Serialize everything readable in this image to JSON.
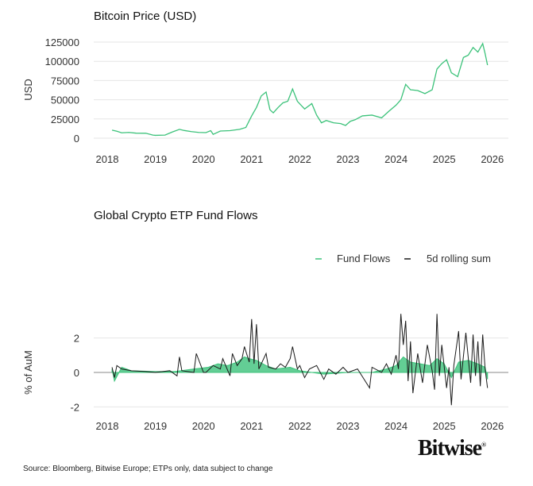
{
  "colors": {
    "price": "#3cc27a",
    "flows": "#3cc27a",
    "rolling": "#1a1a1a",
    "grid": "#e6e6e6"
  },
  "brand": "Bitwise",
  "source": "Source: Bloomberg, Bitwise Europe; ETPs only, data subject to change",
  "chart_data": [
    {
      "type": "line",
      "title": "Bitcoin Price (USD)",
      "ylabel": "USD",
      "xlabel": "",
      "xlim": [
        2018,
        2026
      ],
      "ylim": [
        0,
        125000
      ],
      "xticks": [
        "2018",
        "2019",
        "2020",
        "2021",
        "2022",
        "2023",
        "2024",
        "2025",
        "2026"
      ],
      "yticks": [
        "0",
        "25000",
        "50000",
        "75000",
        "100000",
        "125000"
      ],
      "grid": "horizontal",
      "series": [
        {
          "x": [
            2018.1,
            2018.2,
            2018.3,
            2018.45,
            2018.6,
            2018.8,
            2018.95,
            2019.0,
            2019.2,
            2019.35,
            2019.5,
            2019.6,
            2019.75,
            2019.9,
            2020.05,
            2020.15,
            2020.2,
            2020.35,
            2020.55,
            2020.75,
            2020.88,
            2021.0,
            2021.1,
            2021.2,
            2021.3,
            2021.38,
            2021.45,
            2021.55,
            2021.65,
            2021.75,
            2021.85,
            2021.95,
            2022.1,
            2022.25,
            2022.35,
            2022.45,
            2022.55,
            2022.7,
            2022.85,
            2022.95,
            2023.05,
            2023.15,
            2023.3,
            2023.5,
            2023.7,
            2023.85,
            2024.0,
            2024.1,
            2024.2,
            2024.3,
            2024.45,
            2024.6,
            2024.75,
            2024.85,
            2024.95,
            2025.05,
            2025.15,
            2025.28,
            2025.4,
            2025.5,
            2025.6,
            2025.7,
            2025.8,
            2025.85,
            2025.9
          ],
          "values": [
            10500,
            9000,
            7000,
            7500,
            6500,
            6400,
            4000,
            3700,
            4000,
            8000,
            11500,
            10000,
            8500,
            7500,
            7200,
            9800,
            5000,
            9300,
            9800,
            11500,
            14000,
            29000,
            40000,
            55000,
            60000,
            37000,
            33000,
            40000,
            46000,
            48000,
            64000,
            48000,
            38000,
            45000,
            30000,
            20000,
            23000,
            20000,
            19000,
            16500,
            22000,
            24000,
            29000,
            30000,
            26500,
            35000,
            43000,
            50000,
            70000,
            63000,
            62000,
            58000,
            63000,
            90000,
            97000,
            102000,
            85000,
            80000,
            105000,
            108000,
            118000,
            112000,
            123000,
            110000,
            95000
          ]
        }
      ]
    },
    {
      "type": "line",
      "title": "Global Crypto ETP Fund Flows",
      "ylabel": "% of AuM",
      "xlabel": "",
      "xlim": [
        2018,
        2026
      ],
      "ylim": [
        -2.5,
        3.5
      ],
      "xticks": [
        "2018",
        "2019",
        "2020",
        "2021",
        "2022",
        "2023",
        "2024",
        "2025",
        "2026"
      ],
      "yticks": [
        "-2",
        "0",
        "2"
      ],
      "legend": "top-right",
      "series": [
        {
          "name": "Fund Flows",
          "x": [
            2018.1,
            2018.15,
            2018.3,
            2018.5,
            2019.0,
            2019.4,
            2019.8,
            2020.1,
            2020.3,
            2020.5,
            2020.7,
            2020.85,
            2020.95,
            2021.1,
            2021.3,
            2021.5,
            2021.8,
            2022.0,
            2022.5,
            2023.0,
            2023.5,
            2023.8,
            2024.0,
            2024.15,
            2024.3,
            2024.5,
            2024.7,
            2024.85,
            2025.0,
            2025.15,
            2025.3,
            2025.5,
            2025.7,
            2025.85,
            2025.9
          ],
          "values": [
            0.2,
            -0.5,
            0.3,
            0.1,
            0.05,
            0.05,
            0.2,
            0.3,
            0.5,
            0.4,
            0.6,
            0.9,
            0.8,
            0.7,
            0.4,
            0.2,
            0.3,
            0.1,
            -0.1,
            0.0,
            0.0,
            0.2,
            0.4,
            0.9,
            0.6,
            0.5,
            0.4,
            0.8,
            0.5,
            -0.3,
            0.6,
            0.7,
            0.5,
            0.3,
            -0.4
          ]
        },
        {
          "name": "5d rolling sum",
          "x": [
            2018.1,
            2018.15,
            2018.2,
            2018.3,
            2018.5,
            2018.8,
            2019.0,
            2019.3,
            2019.45,
            2019.5,
            2019.55,
            2019.8,
            2019.85,
            2020.0,
            2020.05,
            2020.2,
            2020.35,
            2020.4,
            2020.55,
            2020.6,
            2020.7,
            2020.8,
            2020.85,
            2020.95,
            2021.0,
            2021.05,
            2021.1,
            2021.15,
            2021.3,
            2021.35,
            2021.5,
            2021.6,
            2021.7,
            2021.8,
            2021.85,
            2021.95,
            2022.0,
            2022.1,
            2022.2,
            2022.35,
            2022.5,
            2022.6,
            2022.75,
            2022.9,
            2023.0,
            2023.2,
            2023.45,
            2023.5,
            2023.7,
            2023.8,
            2023.9,
            2024.0,
            2024.05,
            2024.1,
            2024.15,
            2024.2,
            2024.25,
            2024.3,
            2024.35,
            2024.45,
            2024.55,
            2024.65,
            2024.75,
            2024.8,
            2024.85,
            2024.9,
            2024.95,
            2025.05,
            2025.1,
            2025.15,
            2025.2,
            2025.3,
            2025.35,
            2025.45,
            2025.55,
            2025.6,
            2025.65,
            2025.7,
            2025.75,
            2025.8,
            2025.85,
            2025.9
          ],
          "values": [
            0.3,
            -0.3,
            0.4,
            0.2,
            0.1,
            0.05,
            0.0,
            0.1,
            -0.2,
            0.9,
            0.1,
            0.0,
            1.1,
            0.0,
            0.0,
            0.4,
            0.2,
            0.8,
            -0.2,
            1.1,
            0.4,
            0.8,
            1.5,
            0.6,
            3.1,
            0.5,
            2.8,
            0.2,
            1.1,
            0.3,
            0.2,
            0.5,
            0.3,
            0.8,
            1.5,
            0.2,
            0.4,
            -0.3,
            0.2,
            0.4,
            -0.4,
            0.2,
            -0.1,
            0.3,
            0.0,
            0.2,
            -0.9,
            0.3,
            0.0,
            0.5,
            -0.1,
            1.0,
            0.2,
            3.4,
            1.6,
            3.0,
            -0.5,
            1.8,
            -1.2,
            1.1,
            -0.6,
            1.6,
            0.1,
            -1.0,
            3.4,
            -0.2,
            1.6,
            -0.9,
            0.3,
            -1.9,
            0.4,
            2.4,
            -0.4,
            2.3,
            -0.6,
            2.2,
            -0.2,
            1.8,
            -0.8,
            2.2,
            0.2,
            -0.9
          ]
        }
      ]
    }
  ]
}
